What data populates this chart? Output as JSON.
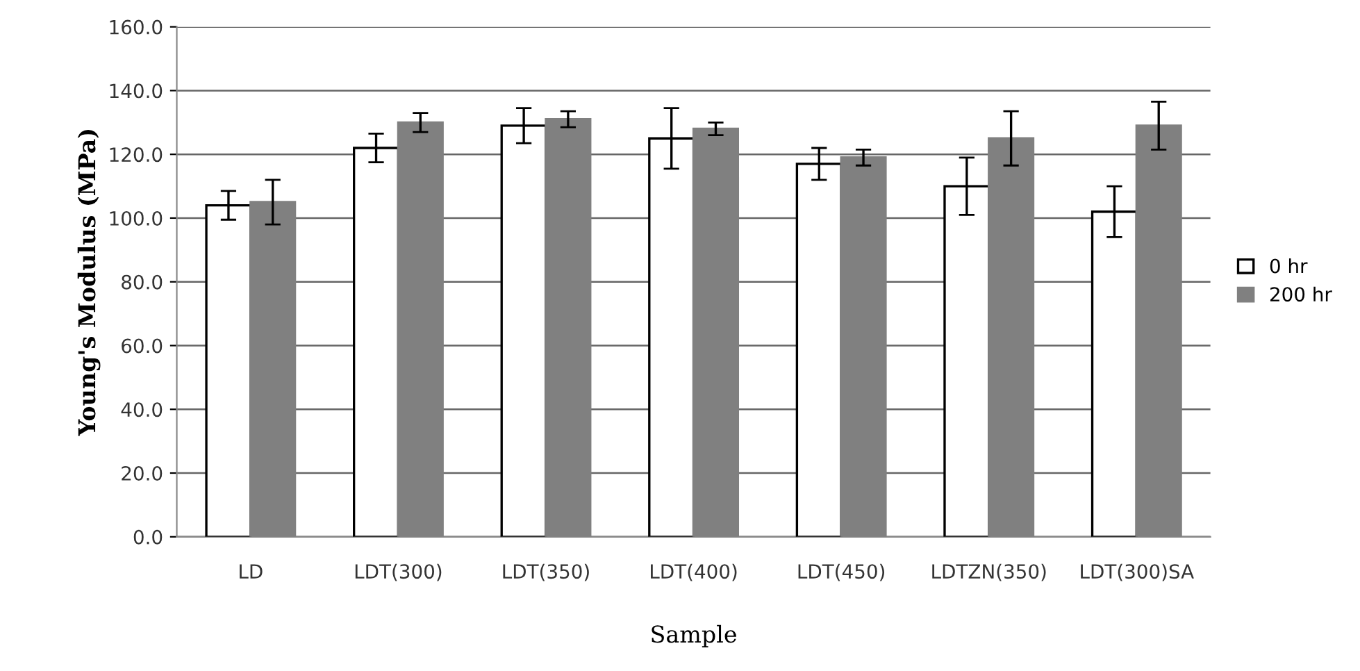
{
  "chart_data": {
    "type": "bar",
    "xlabel": "Sample",
    "ylabel": "Young's Modulus (MPa)",
    "categories": [
      "LD",
      "LDT(300)",
      "LDT(350)",
      "LDT(400)",
      "LDT(450)",
      "LDTZN(350)",
      "LDT(300)SA"
    ],
    "series": [
      {
        "name": "0 hr",
        "color": "#ffffff",
        "values": [
          104,
          122,
          129,
          125,
          117,
          110,
          102
        ],
        "errors": [
          4.5,
          4.5,
          5.5,
          9.5,
          5,
          9,
          8
        ]
      },
      {
        "name": "200 hr",
        "color": "#808080",
        "values": [
          105,
          130,
          131,
          128,
          119,
          125,
          129
        ],
        "errors": [
          7,
          3,
          2.5,
          2,
          2.5,
          8.5,
          7.5
        ]
      }
    ],
    "ylim": [
      0,
      160
    ],
    "yticks": [
      {
        "value": 0,
        "label": "0.0"
      },
      {
        "value": 20,
        "label": "20.0"
      },
      {
        "value": 40,
        "label": "40.0"
      },
      {
        "value": 60,
        "label": "60.0"
      },
      {
        "value": 80,
        "label": "80.0"
      },
      {
        "value": 100,
        "label": "100.0"
      },
      {
        "value": 120,
        "label": "120.0"
      },
      {
        "value": 140,
        "label": "140.0"
      },
      {
        "value": 160,
        "label": "160.0"
      }
    ],
    "grid": "y",
    "legend": "right"
  }
}
